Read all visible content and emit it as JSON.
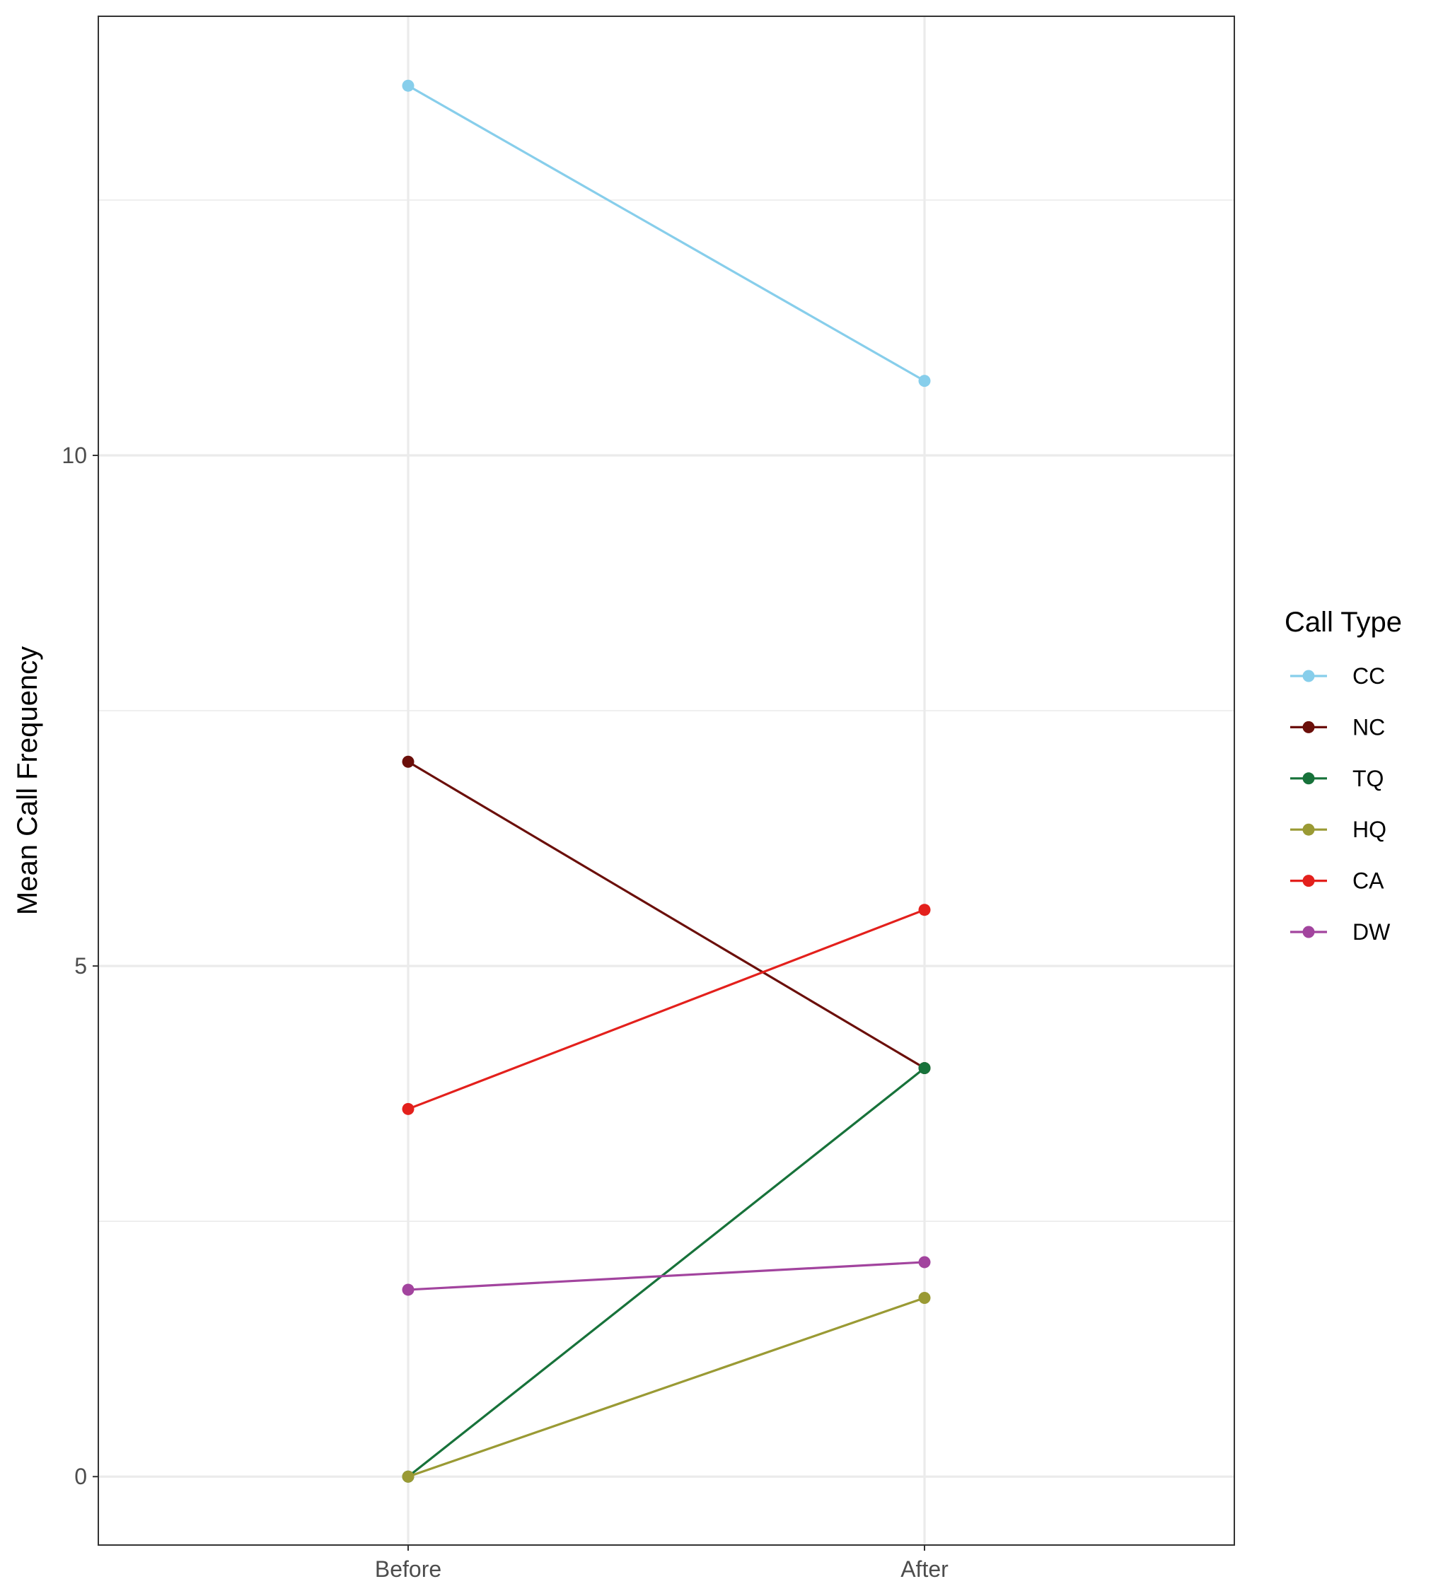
{
  "chart_data": {
    "type": "line",
    "categories": [
      "Before",
      "After"
    ],
    "ylabel": "Mean Call Frequency",
    "xlabel": "",
    "ylim": [
      -0.67,
      14.3
    ],
    "yticks": [
      0,
      5,
      10
    ],
    "grid": true,
    "legend": {
      "title": "Call Type",
      "placement": "right"
    },
    "series": [
      {
        "name": "CC",
        "color": "#87CEEB",
        "values": [
          13.62,
          10.73
        ]
      },
      {
        "name": "NC",
        "color": "#6B0F0A",
        "values": [
          7.0,
          4.0
        ]
      },
      {
        "name": "TQ",
        "color": "#17723A",
        "values": [
          0.0,
          4.0
        ]
      },
      {
        "name": "HQ",
        "color": "#9A9A34",
        "values": [
          0.0,
          1.75
        ]
      },
      {
        "name": "CA",
        "color": "#E3201C",
        "values": [
          3.6,
          5.55
        ]
      },
      {
        "name": "DW",
        "color": "#A2449E",
        "values": [
          1.83,
          2.1
        ]
      }
    ]
  }
}
